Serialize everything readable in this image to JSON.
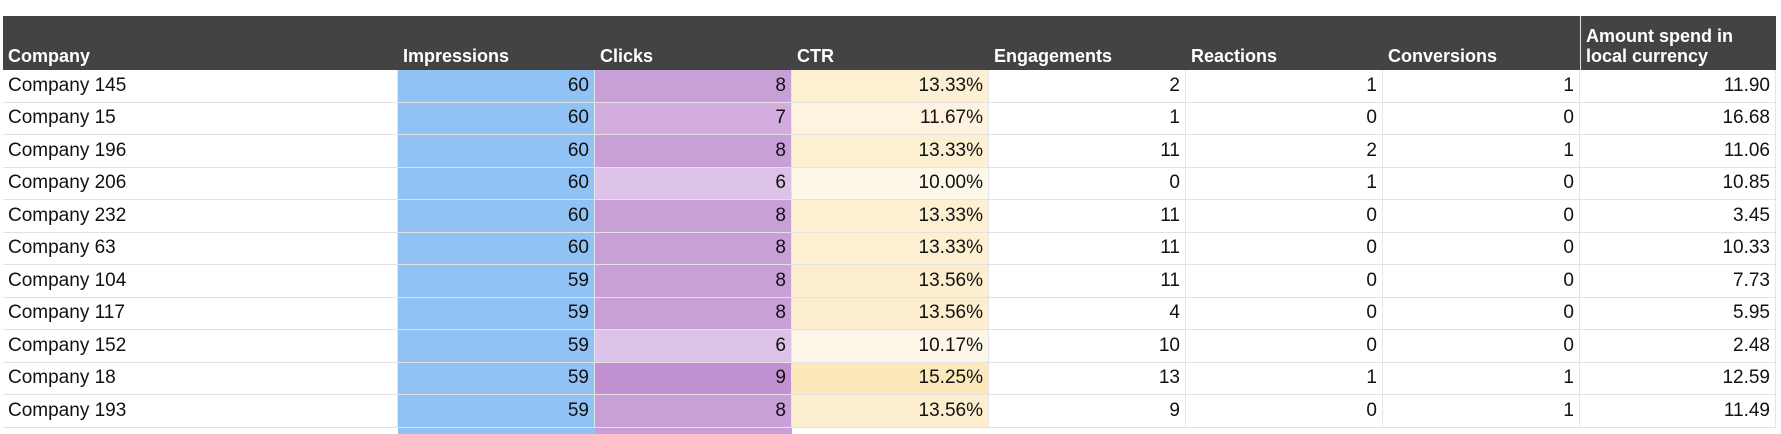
{
  "headers": [
    "Company",
    "Impressions",
    "Clicks",
    "CTR",
    "Engagements",
    "Reactions",
    "Conversions",
    "Amount spend in local currency"
  ],
  "colors": {
    "header_bg": "#434343",
    "impressions": "#90c2f3",
    "clicks": {
      "6": "#dcc2e6",
      "7": "#d3acdf",
      "8": "#c99fd8",
      "9": "#c191d1"
    },
    "ctr": {
      "10.00%": "#fef8ea",
      "10.17%": "#fef7e9",
      "11.67%": "#fef3de",
      "13.33%": "#fdefd1",
      "13.56%": "#fdeed0",
      "15.25%": "#fbe9bc"
    }
  },
  "rows": [
    {
      "company": "Company 145",
      "impressions": "60",
      "clicks": "8",
      "ctr": "13.33%",
      "engagements": "2",
      "reactions": "1",
      "conversions": "1",
      "amount": "11.90"
    },
    {
      "company": "Company 15",
      "impressions": "60",
      "clicks": "7",
      "ctr": "11.67%",
      "engagements": "1",
      "reactions": "0",
      "conversions": "0",
      "amount": "16.68"
    },
    {
      "company": "Company 196",
      "impressions": "60",
      "clicks": "8",
      "ctr": "13.33%",
      "engagements": "11",
      "reactions": "2",
      "conversions": "1",
      "amount": "11.06"
    },
    {
      "company": "Company 206",
      "impressions": "60",
      "clicks": "6",
      "ctr": "10.00%",
      "engagements": "0",
      "reactions": "1",
      "conversions": "0",
      "amount": "10.85"
    },
    {
      "company": "Company 232",
      "impressions": "60",
      "clicks": "8",
      "ctr": "13.33%",
      "engagements": "11",
      "reactions": "0",
      "conversions": "0",
      "amount": "3.45"
    },
    {
      "company": "Company 63",
      "impressions": "60",
      "clicks": "8",
      "ctr": "13.33%",
      "engagements": "11",
      "reactions": "0",
      "conversions": "0",
      "amount": "10.33"
    },
    {
      "company": "Company 104",
      "impressions": "59",
      "clicks": "8",
      "ctr": "13.56%",
      "engagements": "11",
      "reactions": "0",
      "conversions": "0",
      "amount": "7.73"
    },
    {
      "company": "Company 117",
      "impressions": "59",
      "clicks": "8",
      "ctr": "13.56%",
      "engagements": "4",
      "reactions": "0",
      "conversions": "0",
      "amount": "5.95"
    },
    {
      "company": "Company 152",
      "impressions": "59",
      "clicks": "6",
      "ctr": "10.17%",
      "engagements": "10",
      "reactions": "0",
      "conversions": "0",
      "amount": "2.48"
    },
    {
      "company": "Company 18",
      "impressions": "59",
      "clicks": "9",
      "ctr": "15.25%",
      "engagements": "13",
      "reactions": "1",
      "conversions": "1",
      "amount": "12.59"
    },
    {
      "company": "Company 193",
      "impressions": "59",
      "clicks": "8",
      "ctr": "13.56%",
      "engagements": "9",
      "reactions": "0",
      "conversions": "1",
      "amount": "11.49"
    }
  ]
}
